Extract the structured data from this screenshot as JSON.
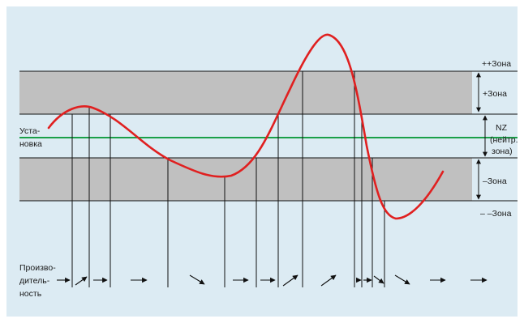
{
  "colors": {
    "panel": "#dcebf3",
    "zone_band": "#c0c0c0",
    "setpoint_line": "#1aa048",
    "curve": "#e02020",
    "lines": "#111111"
  },
  "labels": {
    "zone_pp": "++Зона",
    "zone_p": "+Зона",
    "nz_1": "NZ",
    "nz_2": "(нейтр.",
    "nz_3": "зона)",
    "zone_m": "–Зона",
    "zone_mm": "– –Зона",
    "setpoint_1": "Уста-",
    "setpoint_2": "новка",
    "perf_1": "Произво-",
    "perf_2": "дитель-",
    "perf_3": "ность"
  },
  "icons": {
    "arrow_right": "right-arrow-icon",
    "arrow_up_right": "up-right-arrow-icon",
    "arrow_down_right": "down-right-arrow-icon",
    "double_arrow": "double-headed-arrow-icon"
  }
}
